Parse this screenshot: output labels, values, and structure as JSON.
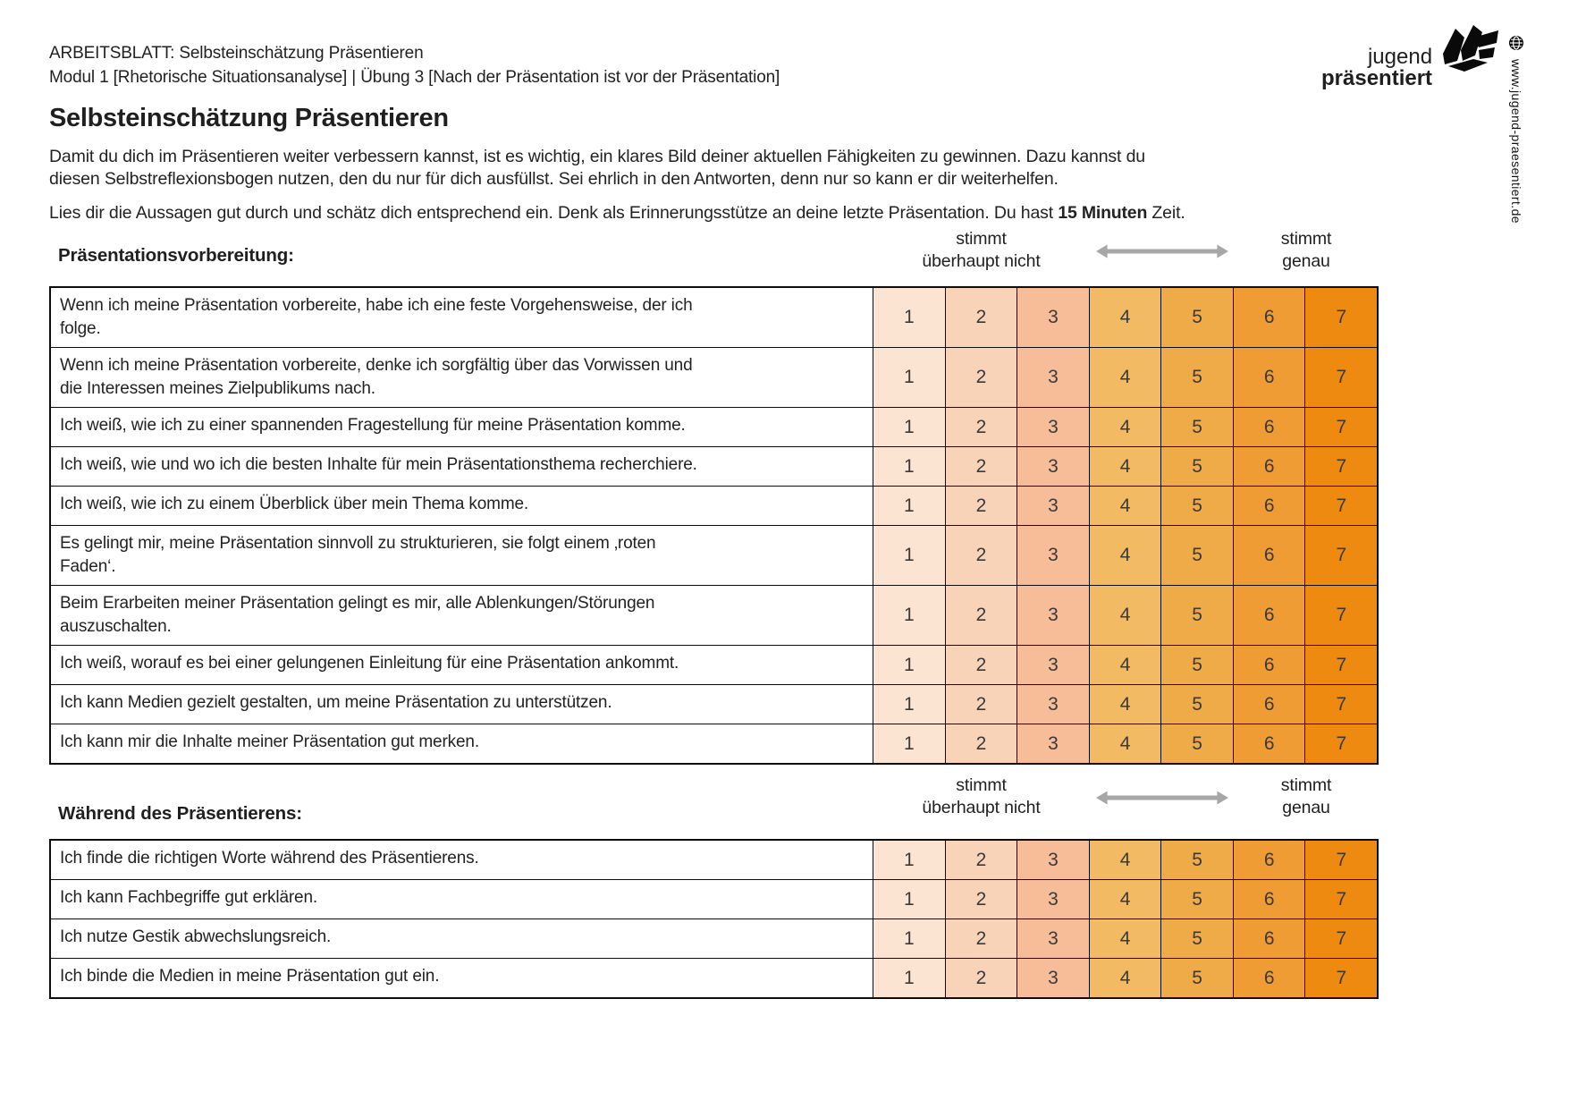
{
  "document": {
    "eyebrow_line1": "ARBEITSBLATT: Selbsteinschätzung Präsentieren",
    "eyebrow_line2": "Modul 1 [Rhetorische Situationsanalyse] | Übung 3 [Nach der Präsentation ist vor der Präsentation]",
    "title": "Selbsteinschätzung Präsentieren",
    "intro": {
      "paragraph1_line1": "Damit du dich im Präsentieren weiter verbessern kannst, ist es wichtig, ein klares Bild deiner aktuellen Fähigkeiten zu gewinnen. Dazu kannst du",
      "paragraph1_line2": "diesen Selbstreflexionsbogen nutzen, den du nur für dich ausfüllst. Sei ehrlich in den Antworten, denn nur so kann er dir weiterhelfen.",
      "paragraph2_prefix": "Lies dir die Aussagen gut durch und schätz dich entsprechend ein. Denk als Erinnerungsstütze an deine letzte Präsentation. Du hast ",
      "paragraph2_bold": "15 Minuten",
      "paragraph2_suffix": " Zeit."
    }
  },
  "branding": {
    "logo_line1": "jugend",
    "logo_line2": "präsentiert",
    "logo_mark_icon": "jugend-praesentiert-mark",
    "globe_icon": "globe-icon",
    "website": "www.jugend-praesentiert.de"
  },
  "scale": {
    "left_label_line1": "stimmt",
    "left_label_line2": "überhaupt nicht",
    "right_label_line1": "stimmt",
    "right_label_line2": "genau",
    "arrow_color": "#a7a7a6",
    "values": [
      "1",
      "2",
      "3",
      "4",
      "5",
      "6",
      "7"
    ],
    "colors": [
      "#fce4d2",
      "#f9d3b8",
      "#f6bd98",
      "#f1ba63",
      "#efab47",
      "#ee9c33",
      "#ee8a10"
    ]
  },
  "sections": [
    {
      "title": "Präsentationsvorbereitung:",
      "statements": [
        [
          "Wenn ich meine Präsentation vorbereite, habe ich eine feste Vorgehensweise, der ich",
          "folge."
        ],
        [
          "Wenn ich meine Präsentation vorbereite, denke ich sorgfältig über das Vorwissen und",
          "die Interessen meines Zielpublikums nach."
        ],
        [
          "Ich weiß, wie ich zu einer spannenden Fragestellung für meine Präsentation komme."
        ],
        [
          "Ich weiß, wie und wo ich die besten Inhalte für mein Präsentationsthema recherchiere."
        ],
        [
          "Ich weiß, wie ich zu einem Überblick über mein Thema komme."
        ],
        [
          "Es gelingt mir, meine Präsentation sinnvoll zu strukturieren, sie folgt einem ‚roten",
          "Faden‘."
        ],
        [
          "Beim Erarbeiten meiner Präsentation gelingt es mir, alle Ablenkungen/Störungen",
          "auszuschalten."
        ],
        [
          "Ich weiß, worauf es bei einer gelungenen Einleitung für eine Präsentation ankommt."
        ],
        [
          "Ich kann Medien gezielt gestalten, um meine Präsentation zu unterstützen."
        ],
        [
          "Ich kann mir die Inhalte meiner Präsentation gut merken."
        ]
      ]
    },
    {
      "title": "Während des Präsentierens:",
      "statements": [
        [
          "Ich finde die richtigen Worte während des Präsentierens."
        ],
        [
          "Ich kann Fachbegriffe gut erklären."
        ],
        [
          "Ich nutze Gestik abwechslungsreich."
        ],
        [
          "Ich binde die Medien in meine Präsentation gut ein."
        ]
      ]
    }
  ]
}
